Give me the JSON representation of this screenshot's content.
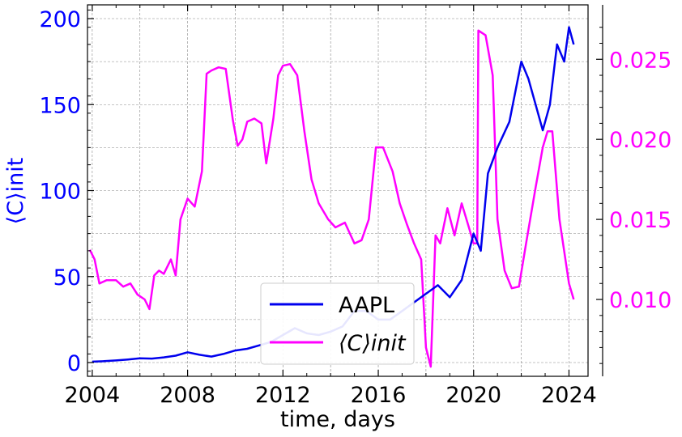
{
  "chart_data": {
    "type": "line",
    "xlabel": "time, days",
    "ylabel_left": "⟨C⟩init",
    "ylabel_right": "",
    "x_ticks": [
      "2004",
      "2008",
      "2012",
      "2016",
      "2020",
      "2024"
    ],
    "x_tick_values": [
      2004,
      2008,
      2012,
      2016,
      2020,
      2024
    ],
    "xlim": [
      2003.8,
      2024.8
    ],
    "left_ticks": [
      "0",
      "50",
      "100",
      "150",
      "200"
    ],
    "left_tick_values": [
      0,
      50,
      100,
      150,
      200
    ],
    "ylim_left": [
      -8,
      208
    ],
    "right_ticks": [
      "0.010",
      "0.015",
      "0.020",
      "0.025"
    ],
    "right_tick_values": [
      0.01,
      0.015,
      0.02,
      0.025
    ],
    "ylim_right": [
      0.0052,
      0.0284
    ],
    "grid": true,
    "legend_position": "bottom-center",
    "colors": {
      "aapl": "#0000ee",
      "cinit": "#ff00ff",
      "left_axis": "#0000ff",
      "right_axis": "#ff00ff"
    },
    "series": [
      {
        "name": "AAPL",
        "axis": "left",
        "x": [
          2004.0,
          2004.5,
          2005.0,
          2005.5,
          2006.0,
          2006.5,
          2007.0,
          2007.5,
          2008.0,
          2008.5,
          2009.0,
          2009.5,
          2010.0,
          2010.5,
          2011.0,
          2011.5,
          2012.0,
          2012.5,
          2013.0,
          2013.5,
          2014.0,
          2014.5,
          2015.0,
          2015.5,
          2016.0,
          2016.5,
          2017.0,
          2017.5,
          2018.0,
          2018.5,
          2019.0,
          2019.5,
          2020.0,
          2020.3,
          2020.6,
          2021.0,
          2021.5,
          2022.0,
          2022.3,
          2022.6,
          2022.9,
          2023.2,
          2023.5,
          2023.8,
          2024.0,
          2024.2
        ],
        "y": [
          0.5,
          0.8,
          1.2,
          1.8,
          2.5,
          2.3,
          3.0,
          4.0,
          6.0,
          4.5,
          3.5,
          5.0,
          7.0,
          8.0,
          10.0,
          12.0,
          16.0,
          20.0,
          17.0,
          16.0,
          18.0,
          21.0,
          30.0,
          30.0,
          25.0,
          25.0,
          30.0,
          35.0,
          40.0,
          45.0,
          38.0,
          48.0,
          75.0,
          65.0,
          110.0,
          125.0,
          140.0,
          175.0,
          165.0,
          150.0,
          135.0,
          150.0,
          185.0,
          175.0,
          195.0,
          185.0
        ]
      },
      {
        "name": "⟨C⟩init",
        "axis": "right",
        "x": [
          2003.9,
          2004.1,
          2004.3,
          2004.6,
          2005.0,
          2005.3,
          2005.6,
          2005.9,
          2006.2,
          2006.4,
          2006.6,
          2006.8,
          2007.0,
          2007.3,
          2007.5,
          2007.7,
          2008.0,
          2008.3,
          2008.6,
          2008.8,
          2009.0,
          2009.3,
          2009.6,
          2009.9,
          2010.1,
          2010.3,
          2010.5,
          2010.8,
          2011.1,
          2011.3,
          2011.6,
          2011.8,
          2012.0,
          2012.3,
          2012.6,
          2012.9,
          2013.2,
          2013.5,
          2013.9,
          2014.2,
          2014.6,
          2015.0,
          2015.3,
          2015.6,
          2015.9,
          2016.2,
          2016.6,
          2016.9,
          2017.2,
          2017.5,
          2017.8,
          2018.0,
          2018.2,
          2018.4,
          2018.6,
          2018.9,
          2019.2,
          2019.5,
          2019.8,
          2020.0,
          2020.15,
          2020.2,
          2020.5,
          2020.8,
          2021.0,
          2021.3,
          2021.6,
          2021.9,
          2022.2,
          2022.6,
          2022.9,
          2023.1,
          2023.3,
          2023.6,
          2023.8,
          2024.0,
          2024.2
        ],
        "y": [
          0.0131,
          0.0125,
          0.011,
          0.0112,
          0.0112,
          0.0108,
          0.011,
          0.0103,
          0.01,
          0.0094,
          0.0115,
          0.0118,
          0.0116,
          0.0125,
          0.0115,
          0.015,
          0.0163,
          0.0158,
          0.018,
          0.0241,
          0.0243,
          0.0245,
          0.0244,
          0.0212,
          0.0196,
          0.02,
          0.0211,
          0.0213,
          0.021,
          0.0185,
          0.0213,
          0.024,
          0.0246,
          0.0247,
          0.024,
          0.0205,
          0.0175,
          0.016,
          0.015,
          0.0145,
          0.0148,
          0.0135,
          0.0137,
          0.015,
          0.0195,
          0.0195,
          0.018,
          0.016,
          0.0147,
          0.0135,
          0.0125,
          0.007,
          0.0058,
          0.014,
          0.0135,
          0.0157,
          0.014,
          0.016,
          0.0145,
          0.0135,
          0.0135,
          0.0268,
          0.0265,
          0.024,
          0.015,
          0.0118,
          0.0107,
          0.0108,
          0.0135,
          0.017,
          0.0195,
          0.0205,
          0.0205,
          0.015,
          0.013,
          0.011,
          0.01
        ]
      }
    ]
  }
}
